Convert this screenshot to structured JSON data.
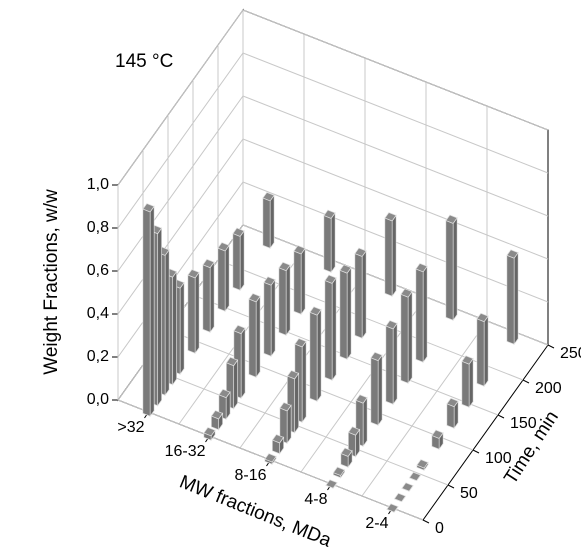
{
  "chart_data": {
    "type": "bar3d",
    "annotation": "145 °C",
    "categories": [
      ">32",
      "16-32",
      "8-16",
      "4-8",
      "2-4"
    ],
    "x": [
      0,
      15,
      30,
      45,
      60,
      90,
      120,
      150,
      180,
      240
    ],
    "values": [
      [
        0.95,
        0.8,
        0.65,
        0.5,
        0.4,
        0.35,
        0.3,
        0.28,
        0.25,
        0.22
      ],
      [
        0.02,
        0.05,
        0.1,
        0.2,
        0.3,
        0.35,
        0.33,
        0.3,
        0.28,
        0.25
      ],
      [
        0.01,
        0.05,
        0.15,
        0.25,
        0.35,
        0.4,
        0.45,
        0.4,
        0.38,
        0.35
      ],
      [
        0,
        0.01,
        0.05,
        0.1,
        0.2,
        0.3,
        0.35,
        0.4,
        0.42,
        0.45
      ],
      [
        0,
        0,
        0,
        0,
        0.01,
        0.05,
        0.1,
        0.2,
        0.3,
        0.4
      ]
    ],
    "color": "#666666",
    "xlabel": "Time, min",
    "xlim": [
      0,
      250
    ],
    "xticks": [
      0,
      50,
      100,
      150,
      200,
      250
    ],
    "category_label": "MW fractions, MDa",
    "ylabel": "Weight Fractions, w/w",
    "ylim": [
      0,
      1
    ],
    "yticks": [
      {
        "value": 0,
        "label": "0,0"
      },
      {
        "value": 0.2,
        "label": "0,2"
      },
      {
        "value": 0.4,
        "label": "0,4"
      },
      {
        "value": 0.6,
        "label": "0,6"
      },
      {
        "value": 0.8,
        "label": "0,8"
      },
      {
        "value": 1,
        "label": "1,0"
      }
    ],
    "grid": true
  }
}
